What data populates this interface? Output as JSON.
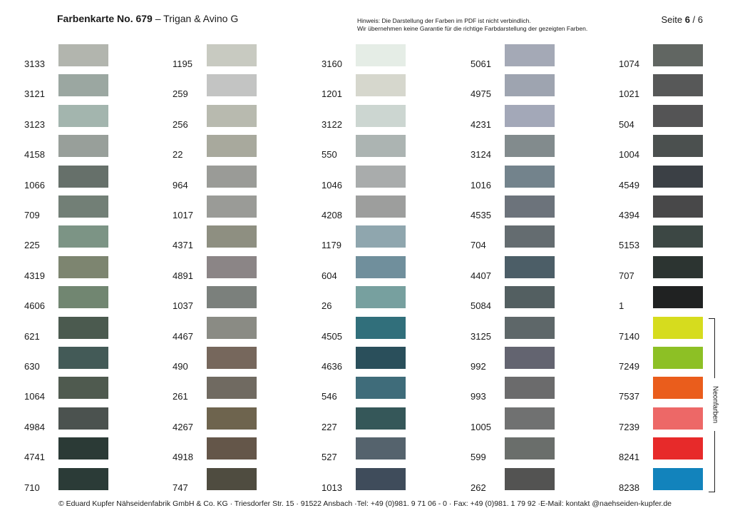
{
  "header": {
    "title": "Farbenkarte No. 679",
    "subtitle": " – Trigan & Avino G",
    "hint_line1": "Hinweis: Die Darstellung der Farben im PDF ist nicht verbindlich.",
    "hint_line2": "Wir übernehmen keine Garantie für die richtige Farbdarstellung der gezeigten Farben.",
    "page_label": "Seite ",
    "page_current": "6",
    "page_total": " / 6"
  },
  "columns": [
    [
      {
        "code": "3133",
        "color": "#b2b5ae"
      },
      {
        "code": "3121",
        "color": "#9ba7a1"
      },
      {
        "code": "3123",
        "color": "#a3b5ae"
      },
      {
        "code": "4158",
        "color": "#989f9a"
      },
      {
        "code": "1066",
        "color": "#66706a"
      },
      {
        "code": "709",
        "color": "#727f76"
      },
      {
        "code": "225",
        "color": "#7c9485"
      },
      {
        "code": "4319",
        "color": "#7d8570"
      },
      {
        "code": "4606",
        "color": "#718671"
      },
      {
        "code": "621",
        "color": "#4b5a4f"
      },
      {
        "code": "630",
        "color": "#435a57"
      },
      {
        "code": "1064",
        "color": "#4f5a4f"
      },
      {
        "code": "4984",
        "color": "#4b524f"
      },
      {
        "code": "4741",
        "color": "#2b3a36"
      },
      {
        "code": "710",
        "color": "#2b3b37"
      }
    ],
    [
      {
        "code": "1195",
        "color": "#c8cac1"
      },
      {
        "code": "259",
        "color": "#c3c4c3"
      },
      {
        "code": "256",
        "color": "#b8baaf"
      },
      {
        "code": "22",
        "color": "#a8a99d"
      },
      {
        "code": "964",
        "color": "#9a9b97"
      },
      {
        "code": "1017",
        "color": "#9a9b97"
      },
      {
        "code": "4371",
        "color": "#8e8f81"
      },
      {
        "code": "4891",
        "color": "#8b8586"
      },
      {
        "code": "1037",
        "color": "#7b807c"
      },
      {
        "code": "4467",
        "color": "#8a8b84"
      },
      {
        "code": "490",
        "color": "#76675c"
      },
      {
        "code": "261",
        "color": "#706a61"
      },
      {
        "code": "4267",
        "color": "#6e644e"
      },
      {
        "code": "4918",
        "color": "#645649"
      },
      {
        "code": "747",
        "color": "#4f4c40"
      }
    ],
    [
      {
        "code": "3160",
        "color": "#e5ede6"
      },
      {
        "code": "1201",
        "color": "#d6d7cd"
      },
      {
        "code": "3122",
        "color": "#ccd6d1"
      },
      {
        "code": "550",
        "color": "#acb4b2"
      },
      {
        "code": "1046",
        "color": "#a9acac"
      },
      {
        "code": "4208",
        "color": "#9d9e9d"
      },
      {
        "code": "1179",
        "color": "#8fa6ae"
      },
      {
        "code": "604",
        "color": "#708f9c"
      },
      {
        "code": "26",
        "color": "#77a09f"
      },
      {
        "code": "4505",
        "color": "#316f7b"
      },
      {
        "code": "4636",
        "color": "#2a4f5b"
      },
      {
        "code": "546",
        "color": "#3f6c7a"
      },
      {
        "code": "227",
        "color": "#355759"
      },
      {
        "code": "527",
        "color": "#55636d"
      },
      {
        "code": "1013",
        "color": "#3f4c5b"
      }
    ],
    [
      {
        "code": "5061",
        "color": "#a4a9b6"
      },
      {
        "code": "4975",
        "color": "#9ea4b0"
      },
      {
        "code": "4231",
        "color": "#a3a8b8"
      },
      {
        "code": "3124",
        "color": "#828b8d"
      },
      {
        "code": "1016",
        "color": "#73838c"
      },
      {
        "code": "4535",
        "color": "#6c737b"
      },
      {
        "code": "704",
        "color": "#646c70"
      },
      {
        "code": "4407",
        "color": "#4c5e67"
      },
      {
        "code": "5084",
        "color": "#535f61"
      },
      {
        "code": "3125",
        "color": "#5e6769"
      },
      {
        "code": "992",
        "color": "#636470"
      },
      {
        "code": "993",
        "color": "#6b6b6c"
      },
      {
        "code": "1005",
        "color": "#707171"
      },
      {
        "code": "599",
        "color": "#6a6e6b"
      },
      {
        "code": "262",
        "color": "#535352"
      }
    ],
    [
      {
        "code": "1074",
        "color": "#616662"
      },
      {
        "code": "1021",
        "color": "#575858"
      },
      {
        "code": "504",
        "color": "#545455"
      },
      {
        "code": "1004",
        "color": "#4b504f"
      },
      {
        "code": "4549",
        "color": "#3b4045"
      },
      {
        "code": "4394",
        "color": "#484849"
      },
      {
        "code": "5153",
        "color": "#3c4744"
      },
      {
        "code": "707",
        "color": "#2c3431"
      },
      {
        "code": "1",
        "color": "#202222"
      },
      {
        "code": "7140",
        "color": "#d6dc1e"
      },
      {
        "code": "7249",
        "color": "#8dc025"
      },
      {
        "code": "7537",
        "color": "#ea5d1c"
      },
      {
        "code": "7239",
        "color": "#ed6867"
      },
      {
        "code": "8241",
        "color": "#e72a2a"
      },
      {
        "code": "8238",
        "color": "#1283bc"
      }
    ]
  ],
  "neon_label": "Neonfarben",
  "footer": "© Eduard Kupfer Nähseidenfabrik GmbH & Co. KG · Triesdorfer Str. 15 · 91522 Ansbach ·Tel: +49 (0)981. 9 71 06 - 0 · Fax: +49 (0)981. 1 79 92 ·E-Mail: kontakt @naehseiden-kupfer.de"
}
